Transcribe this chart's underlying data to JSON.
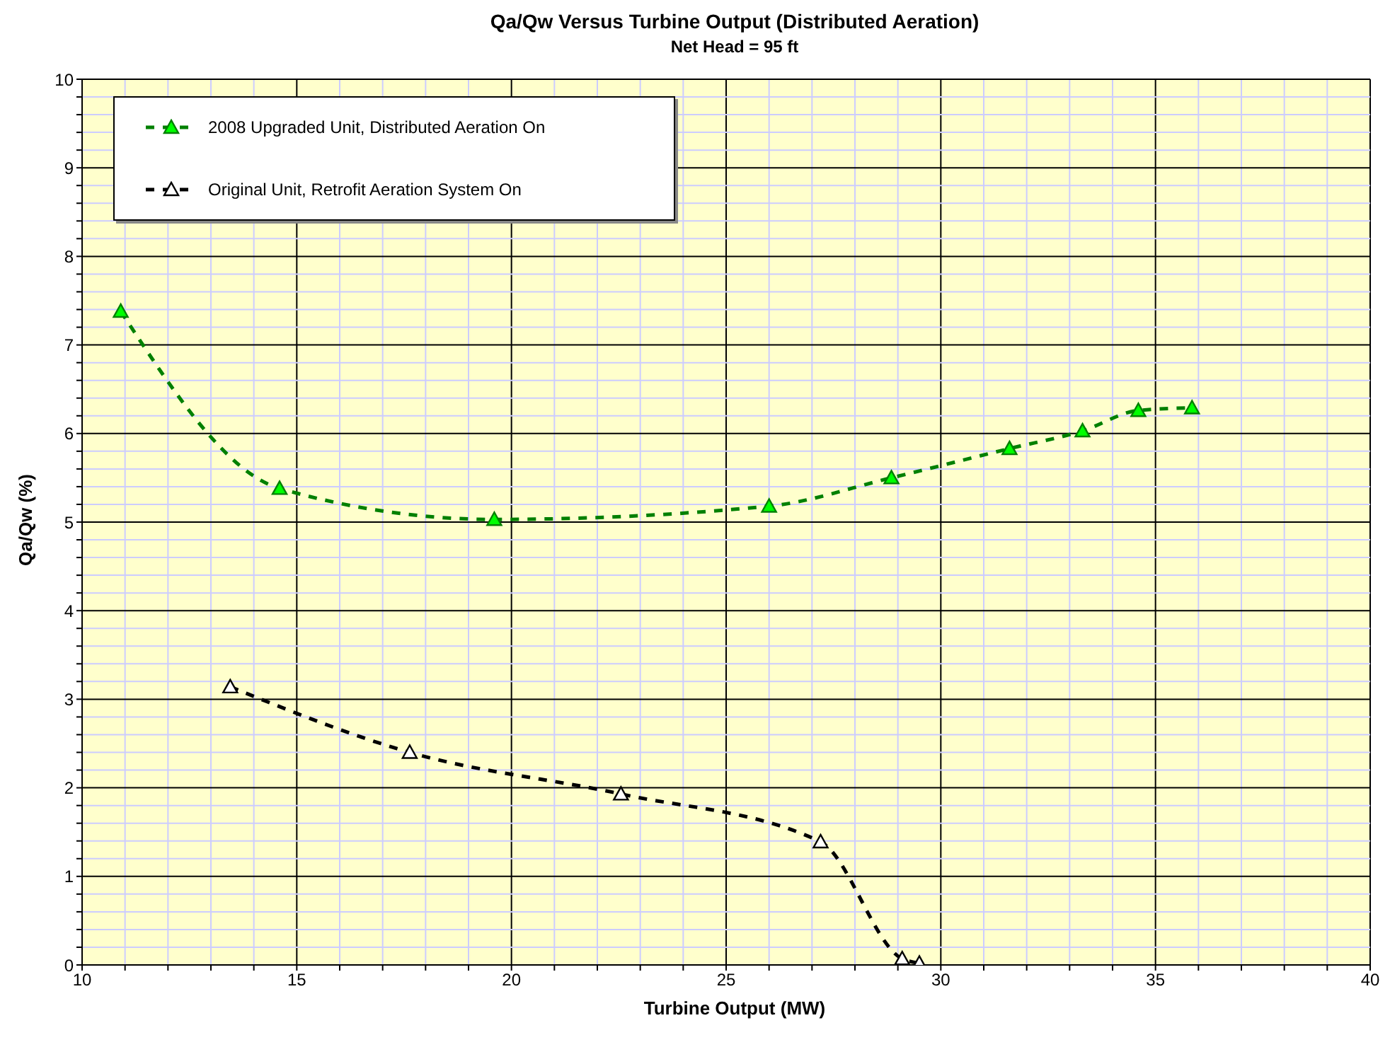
{
  "chart_data": {
    "type": "line",
    "title": "Qa/Qw Versus Turbine Output (Distributed Aeration)",
    "subtitle": "Net Head = 95 ft",
    "xlabel": "Turbine Output (MW)",
    "ylabel": "Qa/Qw (%)",
    "xlim": [
      10,
      40
    ],
    "ylim": [
      0,
      10
    ],
    "xticks": [
      10,
      {
        "value": 11,
        "label": null
      },
      {
        "value": 12,
        "label": null
      },
      {
        "value": 13,
        "label": null
      },
      {
        "value": 14,
        "label": null
      },
      15,
      {
        "value": 16,
        "label": null
      },
      {
        "value": 17,
        "label": null
      },
      {
        "value": 18,
        "label": null
      },
      {
        "value": 19,
        "label": null
      },
      20,
      {
        "value": 21,
        "label": null
      },
      {
        "value": 22,
        "label": null
      },
      {
        "value": 23,
        "label": null
      },
      {
        "value": 24,
        "label": null
      },
      25,
      {
        "value": 26,
        "label": null
      },
      {
        "value": 27,
        "label": null
      },
      {
        "value": 28,
        "label": null
      },
      {
        "value": 29,
        "label": null
      },
      30,
      {
        "value": 31,
        "label": null
      },
      {
        "value": 32,
        "label": null
      },
      {
        "value": 33,
        "label": null
      },
      {
        "value": 34,
        "label": null
      },
      35,
      {
        "value": 36,
        "label": null
      },
      {
        "value": 37,
        "label": null
      },
      {
        "value": 38,
        "label": null
      },
      {
        "value": 39,
        "label": null
      },
      40
    ],
    "yticks": [
      0,
      {
        "value": 0.2,
        "label": null
      },
      {
        "value": 0.4,
        "label": null
      },
      {
        "value": 0.6,
        "label": null
      },
      {
        "value": 0.8,
        "label": null
      },
      1,
      {
        "value": 1.2,
        "label": null
      },
      {
        "value": 1.4,
        "label": null
      },
      {
        "value": 1.6,
        "label": null
      },
      {
        "value": 1.8,
        "label": null
      },
      2,
      {
        "value": 2.2,
        "label": null
      },
      {
        "value": 2.4,
        "label": null
      },
      {
        "value": 2.6,
        "label": null
      },
      {
        "value": 2.8,
        "label": null
      },
      3,
      {
        "value": 3.2,
        "label": null
      },
      {
        "value": 3.4,
        "label": null
      },
      {
        "value": 3.6,
        "label": null
      },
      {
        "value": 3.8,
        "label": null
      },
      4,
      {
        "value": 4.2,
        "label": null
      },
      {
        "value": 4.4,
        "label": null
      },
      {
        "value": 4.6,
        "label": null
      },
      {
        "value": 4.8,
        "label": null
      },
      5,
      {
        "value": 5.2,
        "label": null
      },
      {
        "value": 5.4,
        "label": null
      },
      {
        "value": 5.6,
        "label": null
      },
      {
        "value": 5.8,
        "label": null
      },
      6,
      {
        "value": 6.2,
        "label": null
      },
      {
        "value": 6.4,
        "label": null
      },
      {
        "value": 6.6,
        "label": null
      },
      {
        "value": 6.8,
        "label": null
      },
      7,
      {
        "value": 7.2,
        "label": null
      },
      {
        "value": 7.4,
        "label": null
      },
      {
        "value": 7.6,
        "label": null
      },
      {
        "value": 7.8,
        "label": null
      },
      8,
      {
        "value": 8.2,
        "label": null
      },
      {
        "value": 8.4,
        "label": null
      },
      {
        "value": 8.6,
        "label": null
      },
      {
        "value": 8.8,
        "label": null
      },
      9,
      {
        "value": 9.2,
        "label": null
      },
      {
        "value": 9.4,
        "label": null
      },
      {
        "value": 9.6,
        "label": null
      },
      {
        "value": 9.8,
        "label": null
      },
      10
    ],
    "grid": true,
    "legend": "top left",
    "marker": "triangle",
    "line_style": "dashed",
    "series": [
      {
        "name": "2008 Upgraded Unit, Distributed Aeration On",
        "color": "#008000",
        "x": [
          10.9,
          14.6,
          19.6,
          26.0,
          28.85,
          31.6,
          33.3,
          34.6,
          35.85
        ],
        "values": [
          7.38,
          5.38,
          5.03,
          5.18,
          5.5,
          5.83,
          6.03,
          6.26,
          6.29
        ]
      },
      {
        "name": "Original Unit, Retrofit Aeration System On",
        "color": "#000000",
        "x": [
          13.45,
          17.63,
          22.55,
          27.2,
          29.1,
          29.5
        ],
        "values": [
          3.14,
          2.4,
          1.93,
          1.39,
          0.07,
          0.02
        ]
      }
    ]
  }
}
